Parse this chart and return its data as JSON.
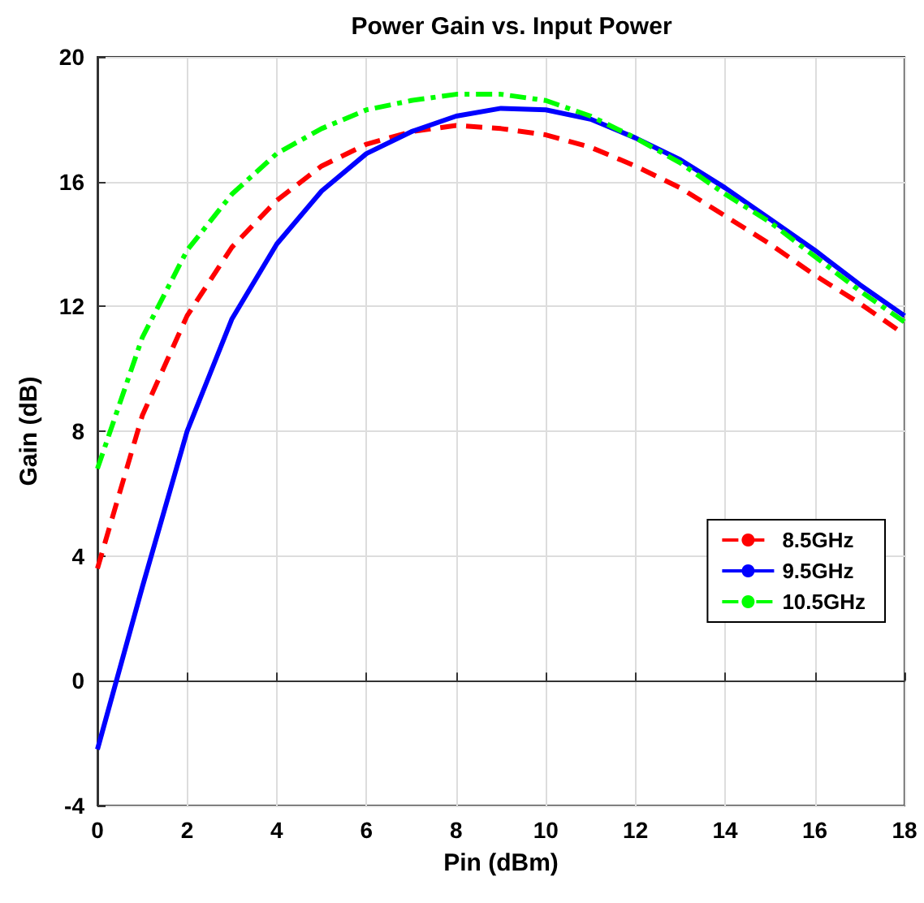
{
  "chart_data": {
    "type": "line",
    "title": "Power Gain vs. Input Power",
    "xlabel": "Pin (dBm)",
    "ylabel": "Gain (dB)",
    "x": [
      0,
      1,
      2,
      3,
      4,
      5,
      6,
      7,
      8,
      9,
      10,
      11,
      12,
      13,
      14,
      15,
      16,
      17,
      18
    ],
    "series": [
      {
        "name": "8.5GHz",
        "color": "#ff0000",
        "line_style": "dashed",
        "values": [
          3.6,
          8.5,
          11.7,
          13.9,
          15.4,
          16.5,
          17.2,
          17.6,
          17.8,
          17.7,
          17.5,
          17.1,
          16.5,
          15.8,
          14.9,
          14.0,
          13.0,
          12.1,
          11.1
        ]
      },
      {
        "name": "9.5GHz",
        "color": "#0000ff",
        "line_style": "solid",
        "values": [
          -2.2,
          3,
          8,
          11.6,
          14,
          15.7,
          16.9,
          17.6,
          18.1,
          18.35,
          18.3,
          18.0,
          17.4,
          16.7,
          15.8,
          14.8,
          13.8,
          12.7,
          11.7
        ]
      },
      {
        "name": "10.5GHz",
        "color": "#00ff00",
        "line_style": "dashdot",
        "values": [
          6.8,
          11,
          13.8,
          15.6,
          16.9,
          17.7,
          18.3,
          18.6,
          18.8,
          18.8,
          18.6,
          18.1,
          17.4,
          16.6,
          15.6,
          14.7,
          13.6,
          12.5,
          11.5
        ]
      }
    ],
    "xlim": [
      0,
      18
    ],
    "xticks": [
      0,
      2,
      4,
      6,
      8,
      10,
      12,
      14,
      16,
      18
    ],
    "ylim": [
      -4,
      20
    ],
    "yticks": [
      -4,
      0,
      4,
      8,
      12,
      16,
      20
    ],
    "grid": true,
    "legend": "right",
    "marker": "none"
  }
}
